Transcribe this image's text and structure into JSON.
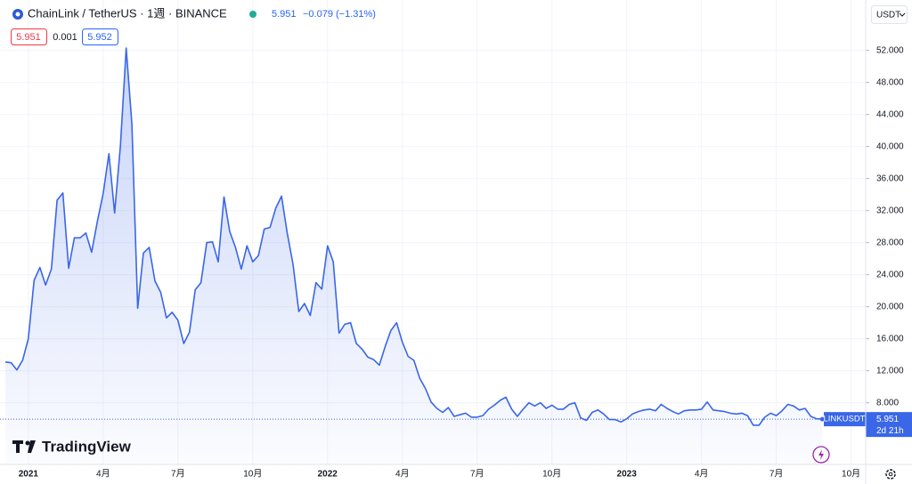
{
  "header": {
    "symbol": "ChainLink / TetherUS · 1週 · BINANCE",
    "last": "5.951",
    "change": "−0.079 (−1.31%)",
    "bid": "5.951",
    "spread": "0.001",
    "ask": "5.952",
    "currency": "USDT",
    "logo": "TradingView"
  },
  "chart_data": {
    "type": "area",
    "categories": [
      null,
      null,
      null,
      null,
      "2021",
      null,
      null,
      null,
      null,
      null,
      null,
      null,
      null,
      null,
      null,
      null,
      null,
      "4月",
      null,
      null,
      null,
      null,
      null,
      null,
      null,
      null,
      null,
      null,
      null,
      null,
      "7月",
      null,
      null,
      null,
      null,
      null,
      null,
      null,
      null,
      null,
      null,
      null,
      null,
      "10月",
      null,
      null,
      null,
      null,
      null,
      null,
      null,
      null,
      null,
      null,
      null,
      null,
      "2022",
      null,
      null,
      null,
      null,
      null,
      null,
      null,
      null,
      null,
      null,
      null,
      null,
      "4月",
      null,
      null,
      null,
      null,
      null,
      null,
      null,
      null,
      null,
      null,
      null,
      null,
      "7月",
      null,
      null,
      null,
      null,
      null,
      null,
      null,
      null,
      null,
      null,
      null,
      null,
      "10月",
      null,
      null,
      null,
      null,
      null,
      null,
      null,
      null,
      null,
      null,
      null,
      null,
      "2023",
      null,
      null,
      null,
      null,
      null,
      null,
      null,
      null,
      null,
      null,
      null,
      null,
      "4月",
      null,
      null,
      null,
      null,
      null,
      null,
      null,
      null,
      null,
      null,
      null,
      null,
      "7月",
      null,
      null,
      null,
      null,
      null,
      null,
      null,
      null,
      null,
      null,
      null,
      null,
      "10月"
    ],
    "series": [
      {
        "name": "LINKUSDT",
        "color": "#3a66e8",
        "values": [
          13.1,
          13.0,
          12.1,
          13.3,
          16.0,
          23.3,
          24.9,
          22.7,
          24.7,
          33.3,
          34.2,
          24.8,
          28.6,
          28.6,
          29.2,
          26.8,
          30.7,
          34.1,
          39.1,
          31.7,
          40.1,
          52.3,
          42.8,
          19.8,
          26.7,
          27.4,
          23.2,
          21.8,
          18.6,
          19.3,
          18.3,
          15.4,
          16.8,
          22.1,
          23.0,
          28.0,
          28.1,
          25.6,
          33.7,
          29.4,
          27.4,
          24.7,
          27.6,
          25.6,
          26.4,
          29.7,
          29.9,
          32.3,
          33.8,
          29.2,
          25.3,
          19.4,
          20.4,
          18.9,
          23.0,
          22.2,
          27.6,
          25.6,
          16.7,
          17.8,
          18.0,
          15.4,
          14.7,
          13.7,
          13.4,
          12.7,
          15.0,
          17.0,
          18.0,
          15.6,
          13.8,
          13.3,
          11.1,
          9.8,
          8.1,
          7.3,
          6.8,
          7.4,
          6.3,
          6.5,
          6.7,
          6.2,
          6.2,
          6.4,
          7.2,
          7.7,
          8.3,
          8.7,
          7.2,
          6.3,
          7.2,
          8.0,
          7.6,
          8.0,
          7.3,
          7.7,
          7.2,
          7.2,
          7.8,
          8.0,
          6.1,
          5.8,
          6.8,
          7.1,
          6.6,
          5.9,
          5.9,
          5.6,
          6.0,
          6.6,
          6.9,
          7.1,
          7.2,
          7.0,
          7.8,
          7.3,
          6.9,
          6.6,
          7.0,
          7.1,
          7.1,
          7.2,
          8.1,
          7.1,
          7.0,
          6.9,
          6.7,
          6.6,
          6.7,
          6.4,
          5.2,
          5.2,
          6.2,
          6.7,
          6.4,
          7.0,
          7.8,
          7.6,
          7.1,
          7.3,
          6.3,
          6.0,
          5.951,
          null,
          null,
          null,
          null,
          null
        ]
      }
    ],
    "countdown": "2d 21h",
    "ylim": [
      0.3,
      58.3
    ],
    "yticks": [
      {
        "value": 8,
        "label": "8.000"
      },
      {
        "value": 12,
        "label": "12.000"
      },
      {
        "value": 16,
        "label": "16.000"
      },
      {
        "value": 20,
        "label": "20.000"
      },
      {
        "value": 24,
        "label": "24.000"
      },
      {
        "value": 28,
        "label": "28.000"
      },
      {
        "value": 32,
        "label": "32.000"
      },
      {
        "value": 36,
        "label": "36.000"
      },
      {
        "value": 40,
        "label": "40.000"
      },
      {
        "value": 44,
        "label": "44.000"
      },
      {
        "value": 48,
        "label": "48.000"
      },
      {
        "value": 52,
        "label": "52.000"
      }
    ],
    "grid": true
  }
}
